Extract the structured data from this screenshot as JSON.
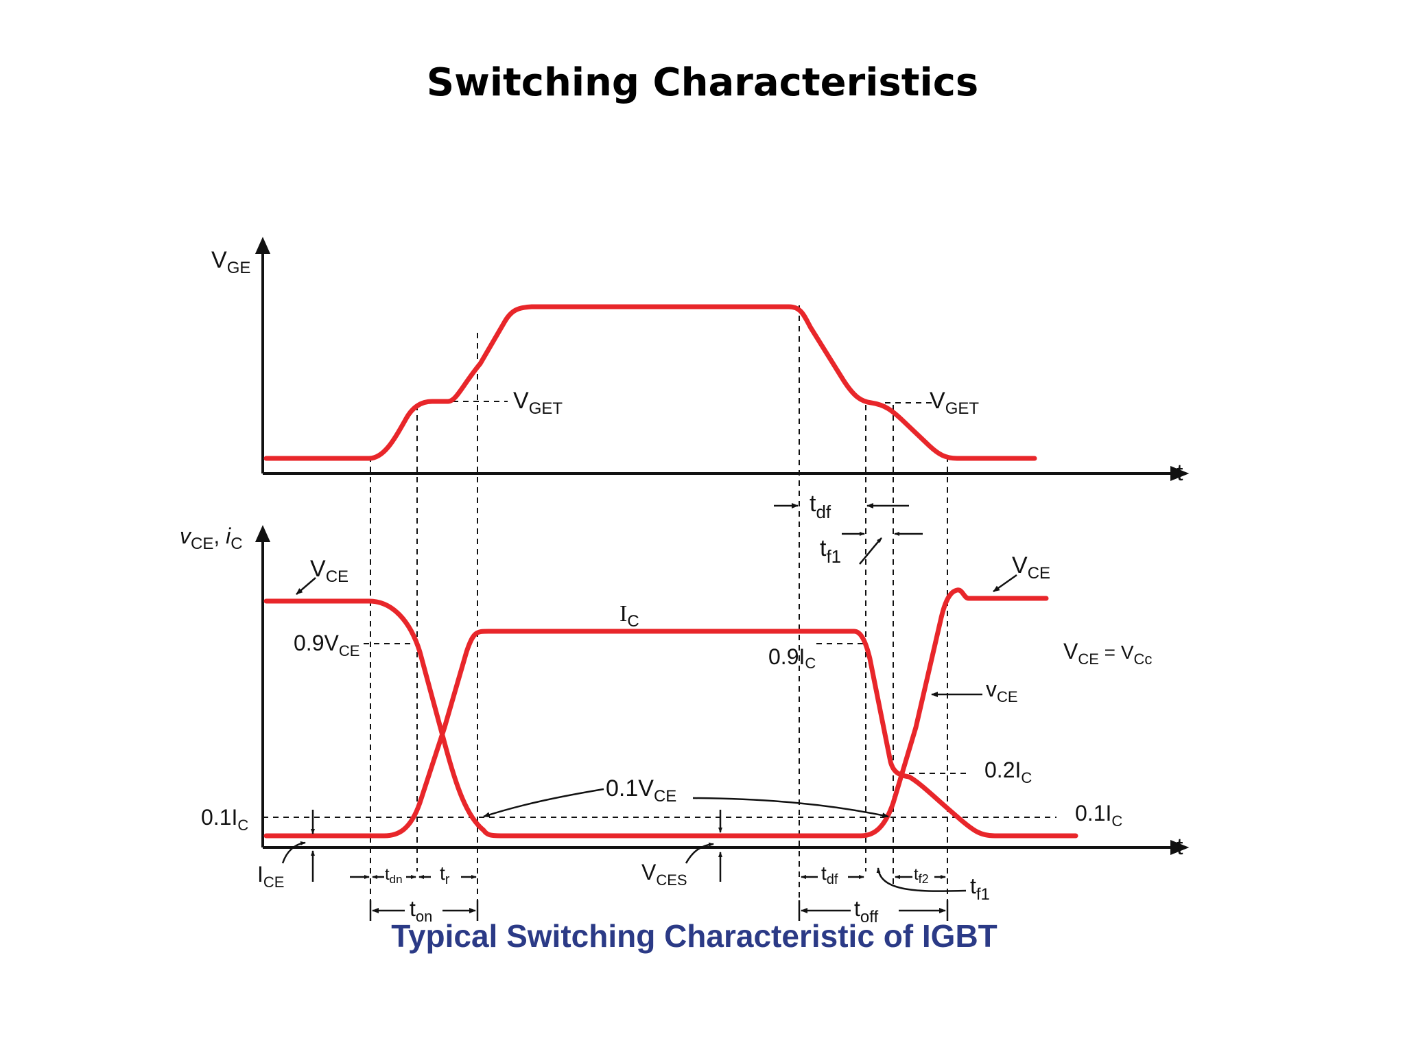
{
  "title": "Switching Characteristics",
  "caption": "Typical Switching Characteristic of IGBT",
  "colors": {
    "curve": "#e8262a",
    "axis": "#111111",
    "caption": "#2b3a86"
  },
  "labels": {
    "vge_axis": {
      "main": "V",
      "sub": "GE"
    },
    "time_axis": "t",
    "vget_left": {
      "main": "V",
      "sub": "GET"
    },
    "vget_right": {
      "main": "V",
      "sub": "GET"
    },
    "vce_ic_axis": {
      "main1": "v",
      "sub1": "CE",
      "sep": ", ",
      "main2": "i",
      "sub2": "C"
    },
    "vce_top_left": {
      "main": "V",
      "sub": "CE"
    },
    "vce_top_right": {
      "main": "V",
      "sub": "CE"
    },
    "ic_curve": {
      "main": "I",
      "sub": "C"
    },
    "vce_09": {
      "main": "0.9V",
      "sub": "CE"
    },
    "ic_09": {
      "main": "0.9I",
      "sub": "C"
    },
    "vce_eq": {
      "main": "V",
      "sub": "CE",
      "mid": " = V",
      "sub2": "Cc"
    },
    "vce_small": {
      "main": "v",
      "sub": "CE"
    },
    "ic_02": {
      "main": "0.2I",
      "sub": "C"
    },
    "ic_01_left": {
      "main": "0.1I",
      "sub": "C"
    },
    "ic_01_right": {
      "main": "0.1I",
      "sub": "C"
    },
    "vce_01": {
      "main": "0.1V",
      "sub": "CE"
    },
    "ice": {
      "main": "I",
      "sub": "CE"
    },
    "vces": {
      "main": "V",
      "sub": "CES"
    },
    "tdn": {
      "main": "t",
      "sub": "dn"
    },
    "tr": {
      "main": "t",
      "sub": "r"
    },
    "ton": {
      "main": "t",
      "sub": "on"
    },
    "tdf_top": {
      "main": "t",
      "sub": "df"
    },
    "tf1_top": {
      "main": "t",
      "sub": "f1"
    },
    "tdf_bottom": {
      "main": "t",
      "sub": "df"
    },
    "tf2": {
      "main": "t",
      "sub": "f2"
    },
    "tf1_bottom": {
      "main": "t",
      "sub": "f1"
    },
    "toff": {
      "main": "t",
      "sub": "off"
    }
  }
}
